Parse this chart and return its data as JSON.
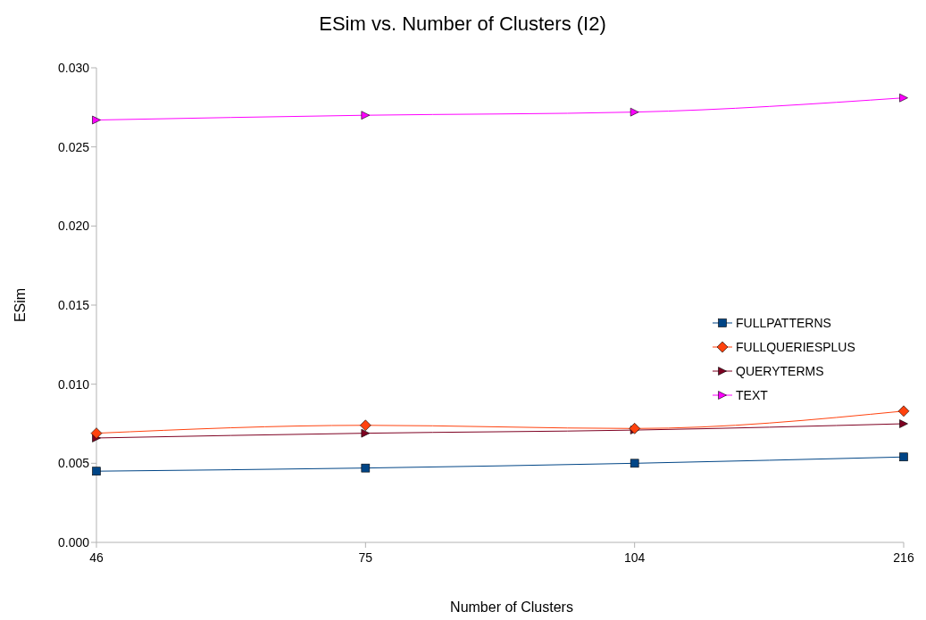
{
  "chart_data": {
    "type": "line",
    "title": "ESim vs. Number of Clusters (I2)",
    "xlabel": "Number of Clusters",
    "ylabel": "ESim",
    "categories": [
      "46",
      "75",
      "104",
      "216"
    ],
    "series": [
      {
        "name": "FULLPATTERNS",
        "color": "#004586",
        "marker": "square",
        "values": [
          0.0045,
          0.0047,
          0.005,
          0.0054
        ]
      },
      {
        "name": "FULLQUERIESPLUS",
        "color": "#ff420e",
        "marker": "diamond",
        "values": [
          0.0069,
          0.0074,
          0.0072,
          0.0083
        ]
      },
      {
        "name": "QUERYTERMS",
        "color": "#7e0021",
        "marker": "triangle",
        "values": [
          0.0066,
          0.0069,
          0.0071,
          0.0075
        ]
      },
      {
        "name": "TEXT",
        "color": "#ff00ff",
        "marker": "triangle",
        "values": [
          0.0267,
          0.027,
          0.0272,
          0.0281
        ]
      }
    ],
    "ylim": [
      0,
      0.03
    ],
    "yticks": [
      {
        "value": 0,
        "label": "0.000"
      },
      {
        "value": 0.005,
        "label": "0.005"
      },
      {
        "value": 0.01,
        "label": "0.010"
      },
      {
        "value": 0.015,
        "label": "0.015"
      },
      {
        "value": 0.02,
        "label": "0.020"
      },
      {
        "value": 0.025,
        "label": "0.025"
      },
      {
        "value": 0.03,
        "label": "0.030"
      }
    ],
    "legend": "right"
  }
}
